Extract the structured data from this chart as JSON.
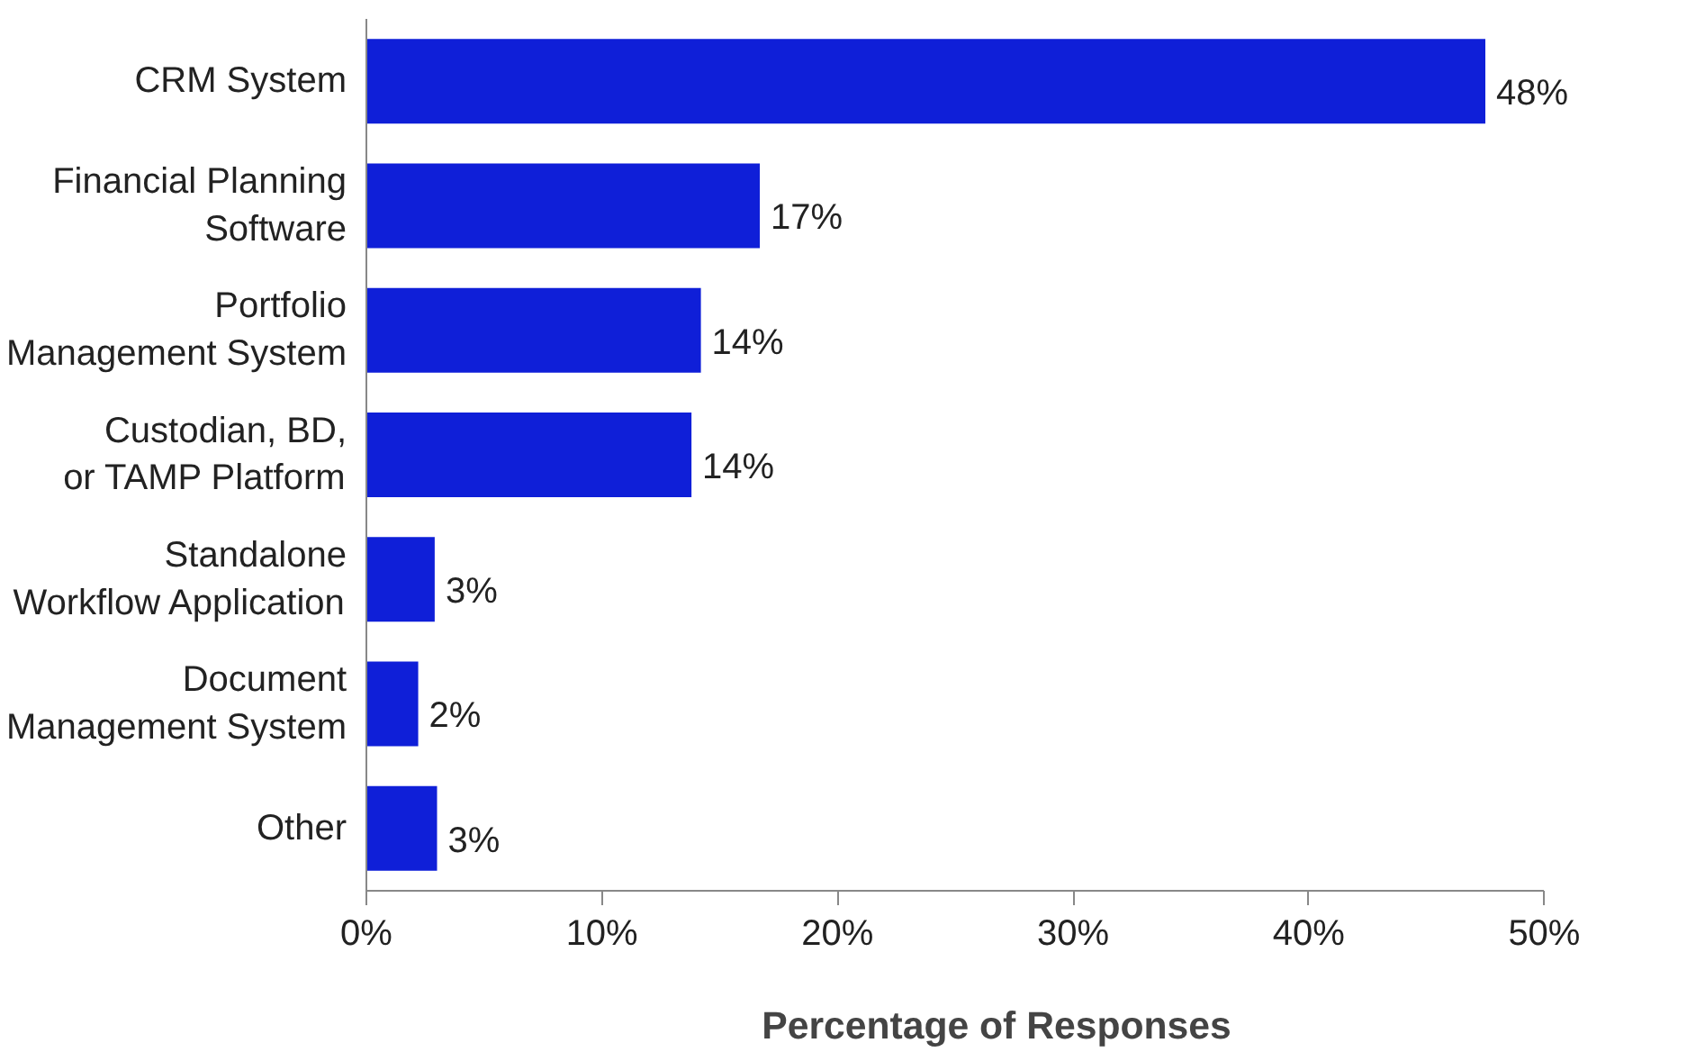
{
  "chart_data": {
    "type": "bar",
    "orientation": "horizontal",
    "xlabel": "Percentage of Responses",
    "categories": [
      "CRM System",
      "Financial Planning\nSoftware",
      "Portfolio\nManagement System",
      "Custodian, BD,\nor TAMP Platform",
      "Standalone\nWorkflow Application",
      "Document\nManagement System",
      "Other"
    ],
    "values": [
      47.5,
      16.7,
      14.2,
      13.8,
      2.9,
      2.2,
      3.0
    ],
    "value_labels": [
      "48%",
      "17%",
      "14%",
      "14%",
      "3%",
      "2%",
      "3%"
    ],
    "color": "#0f1fd8",
    "xlim": [
      0,
      50
    ],
    "xticks": [
      {
        "value": 0,
        "label": "0%"
      },
      {
        "value": 10,
        "label": "10%"
      },
      {
        "value": 20,
        "label": "20%"
      },
      {
        "value": 30,
        "label": "30%"
      },
      {
        "value": 40,
        "label": "40%"
      },
      {
        "value": 50,
        "label": "50%"
      }
    ],
    "grid": false
  }
}
